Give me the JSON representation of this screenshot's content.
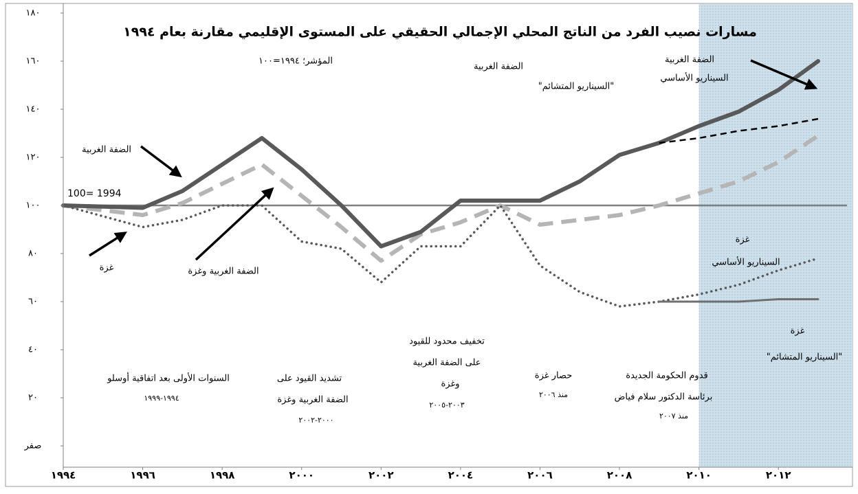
{
  "chart_data": {
    "type": "line",
    "title": "مسارات نصيب الفرد من الناتج المحلي الإجمالي الحقيقي على المستوى الإقليمي مقارنة بعام ١٩٩٤",
    "subtitle": "المؤشر؛ ١٩٩٤=١٠٠",
    "x": [
      1994,
      1996,
      1997,
      1998,
      1999,
      2000,
      2001,
      2002,
      2003,
      2004,
      2005,
      2006,
      2007,
      2008,
      2009,
      2010,
      2011,
      2012,
      2013
    ],
    "xlim": [
      1994,
      2013
    ],
    "xticks": [
      {
        "value": 1994,
        "label": "١٩٩٤"
      },
      {
        "value": 1996,
        "label": "١٩٩٦"
      },
      {
        "value": 1998,
        "label": "١٩٩٨"
      },
      {
        "value": 2000,
        "label": "٢٠٠٠"
      },
      {
        "value": 2002,
        "label": "٢٠٠٢"
      },
      {
        "value": 2004,
        "label": "٢٠٠٤"
      },
      {
        "value": 2006,
        "label": "٢٠٠٦"
      },
      {
        "value": 2008,
        "label": "٢٠٠٨"
      },
      {
        "value": 2010,
        "label": "٢٠١٠"
      },
      {
        "value": 2012,
        "label": "٢٠١٢"
      }
    ],
    "ylim": [
      0,
      180
    ],
    "yticks": [
      {
        "value": 0,
        "label": "صفر"
      },
      {
        "value": 20,
        "label": "٢٠"
      },
      {
        "value": 40,
        "label": "٤٠"
      },
      {
        "value": 60,
        "label": "٦٠"
      },
      {
        "value": 80,
        "label": "٨٠"
      },
      {
        "value": 100,
        "label": "١٠٠"
      },
      {
        "value": 120,
        "label": "١٢٠"
      },
      {
        "value": 140,
        "label": "١٤٠"
      },
      {
        "value": 160,
        "label": "١٦٠"
      },
      {
        "value": 180,
        "label": "١٨٠"
      }
    ],
    "grid": false,
    "shaded_from": 2010,
    "shade_color": "#cfe0ea",
    "reference": {
      "value": 100,
      "label": "100= 1994",
      "color": "#7f7f7f"
    },
    "series": [
      {
        "color": "#595959",
        "style": "thick-solid",
        "values": [
          100,
          99,
          106,
          117,
          128,
          115,
          100,
          83,
          89,
          102,
          102,
          102,
          110,
          121,
          126,
          133,
          139,
          148,
          160
        ]
      },
      {
        "color": "#b5b5b5",
        "style": "thick-dashed",
        "values": [
          100,
          96,
          101,
          109,
          117,
          104,
          91,
          77,
          88,
          93,
          100,
          92,
          94,
          96,
          100,
          105,
          110,
          118,
          129
        ]
      },
      {
        "color": "#595959",
        "style": "dotted",
        "values": [
          100,
          91,
          94,
          100,
          100,
          85,
          82,
          68,
          83,
          83,
          100,
          75,
          64,
          58,
          60,
          63,
          67,
          73,
          78
        ]
      },
      {
        "color": "#000000",
        "style": "dashed",
        "values": [
          null,
          null,
          null,
          null,
          null,
          null,
          null,
          null,
          null,
          null,
          null,
          null,
          null,
          null,
          126,
          128,
          131,
          133,
          136
        ]
      },
      {
        "color": "#6f6f6f",
        "style": "solid",
        "values": [
          null,
          null,
          null,
          null,
          null,
          null,
          null,
          null,
          null,
          null,
          null,
          null,
          null,
          null,
          60,
          60,
          60,
          61,
          61
        ]
      }
    ],
    "annotations": [
      "الضفة الغربية",
      "\"السيناريو المتشائم\"",
      "الضفة الغربية",
      "السيناريو الأساسي",
      "الضفة الغربية",
      "غزة",
      "الضفة الغربية وغزة",
      "غزة",
      "السيناريو الأساسي",
      "غزة",
      "\"السيناريو المتشائم\"",
      "السنوات الأولى بعد اتفاقية أوسلو",
      "١٩٩٤-١٩٩٩",
      "تشديد القيود على",
      "الضفة الغربية وغزة",
      "٢٠٠٠-٢٠٠٢",
      "تخفيف محدود للقيود",
      "على الضفة الغربية",
      "وغزة",
      "٢٠٠٣-٢٠٠٥",
      "حصار غزة",
      "منذ ٢٠٠٦",
      "قدوم الحكومة الجديدة",
      "برئاسة الدكتور سلام فياض",
      "منذ ٢٠٠٧"
    ]
  }
}
